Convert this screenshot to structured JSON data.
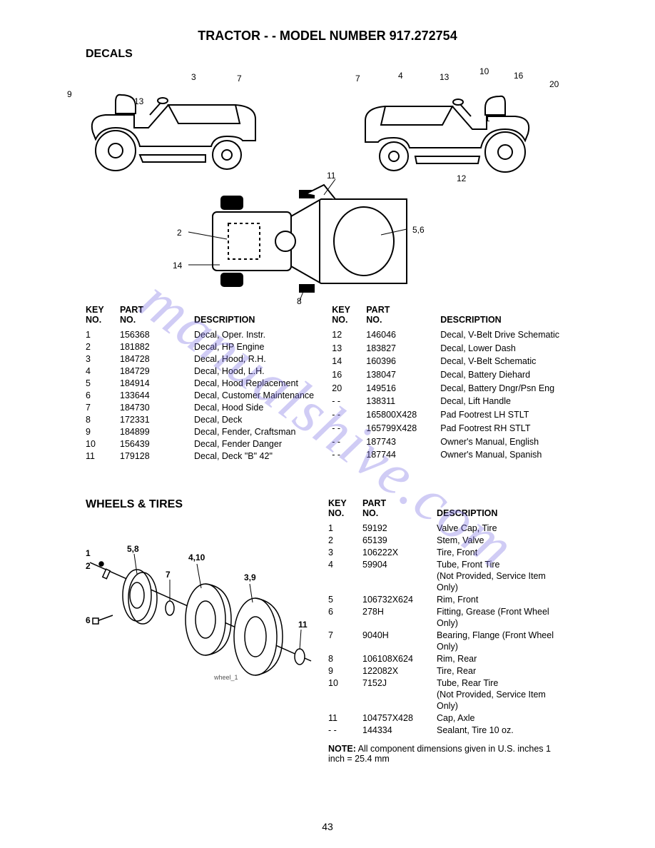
{
  "title": "TRACTOR - - MODEL NUMBER  917.272754",
  "section1_heading": "DECALS",
  "section2_heading": "WHEELS & TIRES",
  "page_number": "43",
  "watermark_text": "manualshive.com",
  "table_headers": {
    "key": "KEY\nNO.",
    "part": "PART\nNO.",
    "desc": "DESCRIPTION"
  },
  "decals_left": [
    {
      "k": "1",
      "p": "156368",
      "d": "Decal, Oper. Instr."
    },
    {
      "k": "2",
      "p": "181882",
      "d": "Decal, HP Engine"
    },
    {
      "k": "3",
      "p": "184728",
      "d": "Decal, Hood, R.H."
    },
    {
      "k": "4",
      "p": "184729",
      "d": "Decal, Hood, L.H."
    },
    {
      "k": "5",
      "p": "184914",
      "d": "Decal,  Hood Replacement"
    },
    {
      "k": "6",
      "p": "133644",
      "d": "Decal, Customer Maintenance"
    },
    {
      "k": "7",
      "p": "184730",
      "d": "Decal, Hood Side"
    },
    {
      "k": "8",
      "p": "172331",
      "d": "Decal, Deck"
    },
    {
      "k": "9",
      "p": "184899",
      "d": "Decal, Fender, Craftsman"
    },
    {
      "k": "10",
      "p": "156439",
      "d": "Decal, Fender Danger"
    },
    {
      "k": "11",
      "p": "179128",
      "d": "Decal, Deck \"B\" 42\""
    }
  ],
  "decals_right": [
    {
      "k": "12",
      "p": "146046",
      "d": "Decal, V-Belt Drive Schematic"
    },
    {
      "k": "13",
      "p": "183827",
      "d": "Decal, Lower Dash"
    },
    {
      "k": "14",
      "p": "160396",
      "d": "Decal, V-Belt Schematic"
    },
    {
      "k": "16",
      "p": "138047",
      "d": "Decal, Battery Diehard"
    },
    {
      "k": "20",
      "p": "149516",
      "d": "Decal, Battery Dngr/Psn Eng"
    },
    {
      "k": "- -",
      "p": "138311",
      "d": "Decal, Lift Handle"
    },
    {
      "k": "- -",
      "p": "165800X428",
      "d": "Pad Footrest LH STLT"
    },
    {
      "k": "- -",
      "p": "165799X428",
      "d": "Pad Footrest RH STLT"
    },
    {
      "k": "- -",
      "p": "187743",
      "d": "Owner's Manual, English"
    },
    {
      "k": "- -",
      "p": "187744",
      "d": "Owner's Manual, Spanish"
    }
  ],
  "wheels": [
    {
      "k": "1",
      "p": "59192",
      "d": "Valve Cap, Tire"
    },
    {
      "k": "2",
      "p": "65139",
      "d": "Stem, Valve"
    },
    {
      "k": "3",
      "p": "106222X",
      "d": "Tire, Front"
    },
    {
      "k": "4",
      "p": "59904",
      "d": "Tube, Front Tire\n(Not Provided, Service Item Only)"
    },
    {
      "k": "5",
      "p": "106732X624",
      "d": "Rim, Front"
    },
    {
      "k": "6",
      "p": "278H",
      "d": "Fitting, Grease (Front Wheel Only)"
    },
    {
      "k": "7",
      "p": "9040H",
      "d": "Bearing, Flange (Front Wheel Only)"
    },
    {
      "k": "8",
      "p": "106108X624",
      "d": "Rim, Rear"
    },
    {
      "k": "9",
      "p": "122082X",
      "d": "Tire, Rear"
    },
    {
      "k": "10",
      "p": "7152J",
      "d": "Tube, Rear Tire\n(Not Provided, Service Item Only)"
    },
    {
      "k": "11",
      "p": "104757X428",
      "d": "Cap, Axle"
    },
    {
      "k": "- -",
      "p": "144334",
      "d": "Sealant, Tire 10 oz."
    }
  ],
  "note_bold": "NOTE:",
  "note_text": " All component dimensions given in U.S. inches 1 inch = 25.4 mm",
  "wheel_diagram_label": "wheel_1",
  "decal_callouts": {
    "left": {
      "c9": "9",
      "c13": "13",
      "c3": "3",
      "c7": "7"
    },
    "right": {
      "c7": "7",
      "c4": "4",
      "c13": "13",
      "c10": "10",
      "c16": "16",
      "c20": "20",
      "c1": "1",
      "c12": "12"
    },
    "top": {
      "c11": "11",
      "c2": "2",
      "c14": "14",
      "c8": "8",
      "c56": "5,6"
    }
  },
  "wheel_callouts": {
    "c1": "1",
    "c2": "2",
    "c58": "5,8",
    "c410": "4,10",
    "c7": "7",
    "c39": "3,9",
    "c6": "6",
    "c11": "11"
  }
}
